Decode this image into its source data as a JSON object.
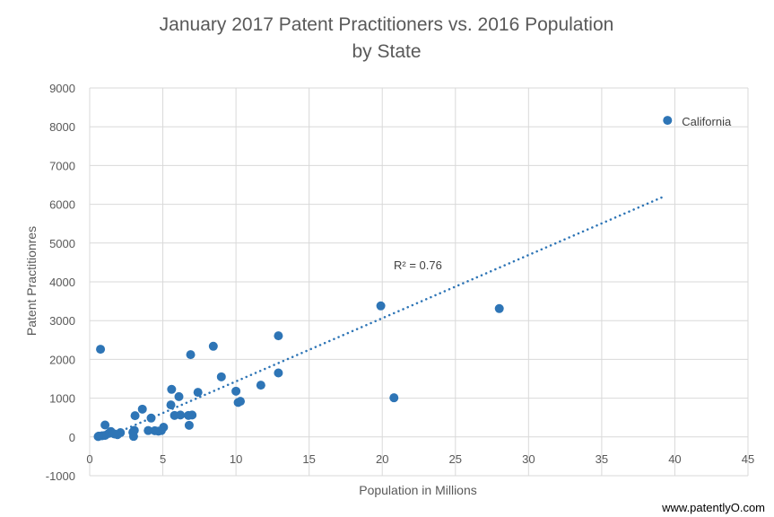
{
  "chart_data": {
    "type": "scatter",
    "title": [
      "January 2017 Patent Practitioners vs. 2016 Population",
      "by State"
    ],
    "xlabel": "Population in Millions",
    "ylabel": "Patent Practitionres",
    "xlim": [
      0,
      45
    ],
    "ylim": [
      -1000,
      9000
    ],
    "xticks": [
      0,
      5,
      10,
      15,
      20,
      25,
      30,
      35,
      40,
      45
    ],
    "yticks": [
      -1000,
      0,
      1000,
      2000,
      3000,
      4000,
      5000,
      6000,
      7000,
      8000,
      9000
    ],
    "grid": true,
    "legend": "none",
    "marker_color": "#2e75b6",
    "series": [
      {
        "name": "States",
        "points": [
          {
            "x": 39.5,
            "y": 8165,
            "label": "California"
          },
          {
            "x": 28.0,
            "y": 3310
          },
          {
            "x": 19.9,
            "y": 3380
          },
          {
            "x": 20.8,
            "y": 1010
          },
          {
            "x": 12.9,
            "y": 2608
          },
          {
            "x": 12.9,
            "y": 1650
          },
          {
            "x": 11.7,
            "y": 1335
          },
          {
            "x": 10.3,
            "y": 918
          },
          {
            "x": 10.15,
            "y": 890
          },
          {
            "x": 10.0,
            "y": 1180
          },
          {
            "x": 9.0,
            "y": 1550
          },
          {
            "x": 8.45,
            "y": 2338
          },
          {
            "x": 7.4,
            "y": 1150
          },
          {
            "x": 6.9,
            "y": 2122
          },
          {
            "x": 7.0,
            "y": 565
          },
          {
            "x": 6.75,
            "y": 555
          },
          {
            "x": 6.8,
            "y": 300
          },
          {
            "x": 6.2,
            "y": 565
          },
          {
            "x": 6.1,
            "y": 1040
          },
          {
            "x": 5.8,
            "y": 555
          },
          {
            "x": 5.6,
            "y": 1227
          },
          {
            "x": 5.55,
            "y": 826
          },
          {
            "x": 5.05,
            "y": 250
          },
          {
            "x": 4.9,
            "y": 165
          },
          {
            "x": 4.7,
            "y": 150
          },
          {
            "x": 4.45,
            "y": 160
          },
          {
            "x": 4.2,
            "y": 486
          },
          {
            "x": 4.0,
            "y": 165
          },
          {
            "x": 3.6,
            "y": 717
          },
          {
            "x": 3.1,
            "y": 548
          },
          {
            "x": 3.05,
            "y": 170
          },
          {
            "x": 2.95,
            "y": 120
          },
          {
            "x": 3.0,
            "y": 15
          },
          {
            "x": 2.1,
            "y": 110
          },
          {
            "x": 1.9,
            "y": 60
          },
          {
            "x": 1.7,
            "y": 75
          },
          {
            "x": 1.45,
            "y": 140
          },
          {
            "x": 1.3,
            "y": 90
          },
          {
            "x": 1.05,
            "y": 308
          },
          {
            "x": 1.05,
            "y": 40
          },
          {
            "x": 0.85,
            "y": 30
          },
          {
            "x": 0.74,
            "y": 2262
          },
          {
            "x": 0.62,
            "y": 20
          },
          {
            "x": 0.58,
            "y": 10
          }
        ]
      }
    ],
    "trendline": {
      "type": "linear",
      "style": "dotted",
      "x_range": [
        2.2,
        39.25
      ],
      "slope": 163,
      "intercept": -198,
      "annotation": "R² = 0.76"
    }
  },
  "watermark": "www.patentlyO.com"
}
